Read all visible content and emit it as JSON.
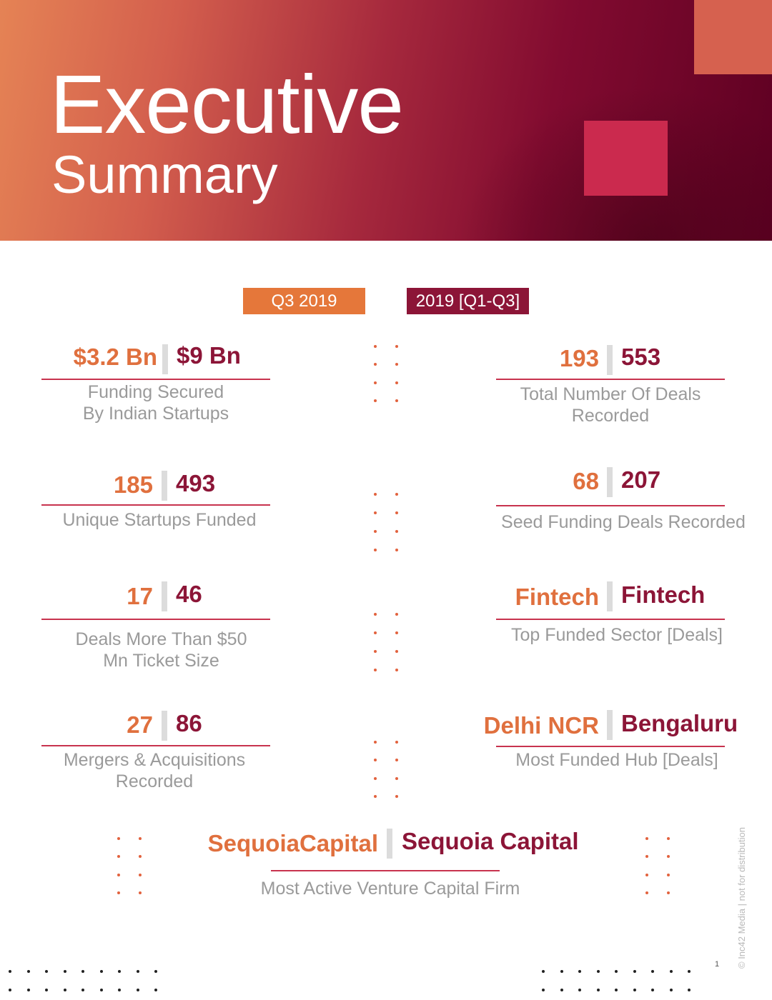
{
  "header": {
    "title": "Executive",
    "subtitle": "Summary",
    "colors": {
      "gradient_start": "#e58355",
      "gradient_end": "#5e0022",
      "square_light": "#d6614f",
      "square_accent": "#cb2a4e"
    }
  },
  "legend": {
    "period_1": "Q3 2019",
    "period_2": "2019 [Q1-Q3]",
    "period_1_color": "#e5773a",
    "period_2_color": "#8c1537"
  },
  "stats": {
    "funding": {
      "q3": "$3.2 Bn",
      "ytd": "$9 Bn",
      "label_1": "Funding Secured",
      "label_2": "By Indian Startups"
    },
    "deals": {
      "q3": "193",
      "ytd": "553",
      "label_1": "Total Number Of Deals",
      "label_2": "Recorded"
    },
    "unique": {
      "q3": "185",
      "ytd": "493",
      "label_1": "Unique Startups Funded"
    },
    "seed": {
      "q3": "68",
      "ytd": "207",
      "label_1": "Seed Funding Deals Recorded"
    },
    "large_deals": {
      "q3": "17",
      "ytd": "46",
      "label_1": "Deals More Than $50",
      "label_2": "Mn Ticket Size"
    },
    "sector": {
      "q3": "Fintech",
      "ytd": "Fintech",
      "label_1": "Top Funded Sector [Deals]"
    },
    "mna": {
      "q3": "27",
      "ytd": "86",
      "label_1": "Mergers & Acquisitions",
      "label_2": "Recorded"
    },
    "hub": {
      "q3": "Delhi NCR",
      "ytd": "Bengaluru",
      "label_1": "Most Funded Hub [Deals]"
    },
    "vc": {
      "q3": "SequoiaCapital",
      "ytd": "Sequoia Capital",
      "label_1": "Most Active Venture Capital Firm"
    }
  },
  "footer": {
    "copyright": "© Inc42 Media | not for distribution",
    "page_number": "1"
  }
}
